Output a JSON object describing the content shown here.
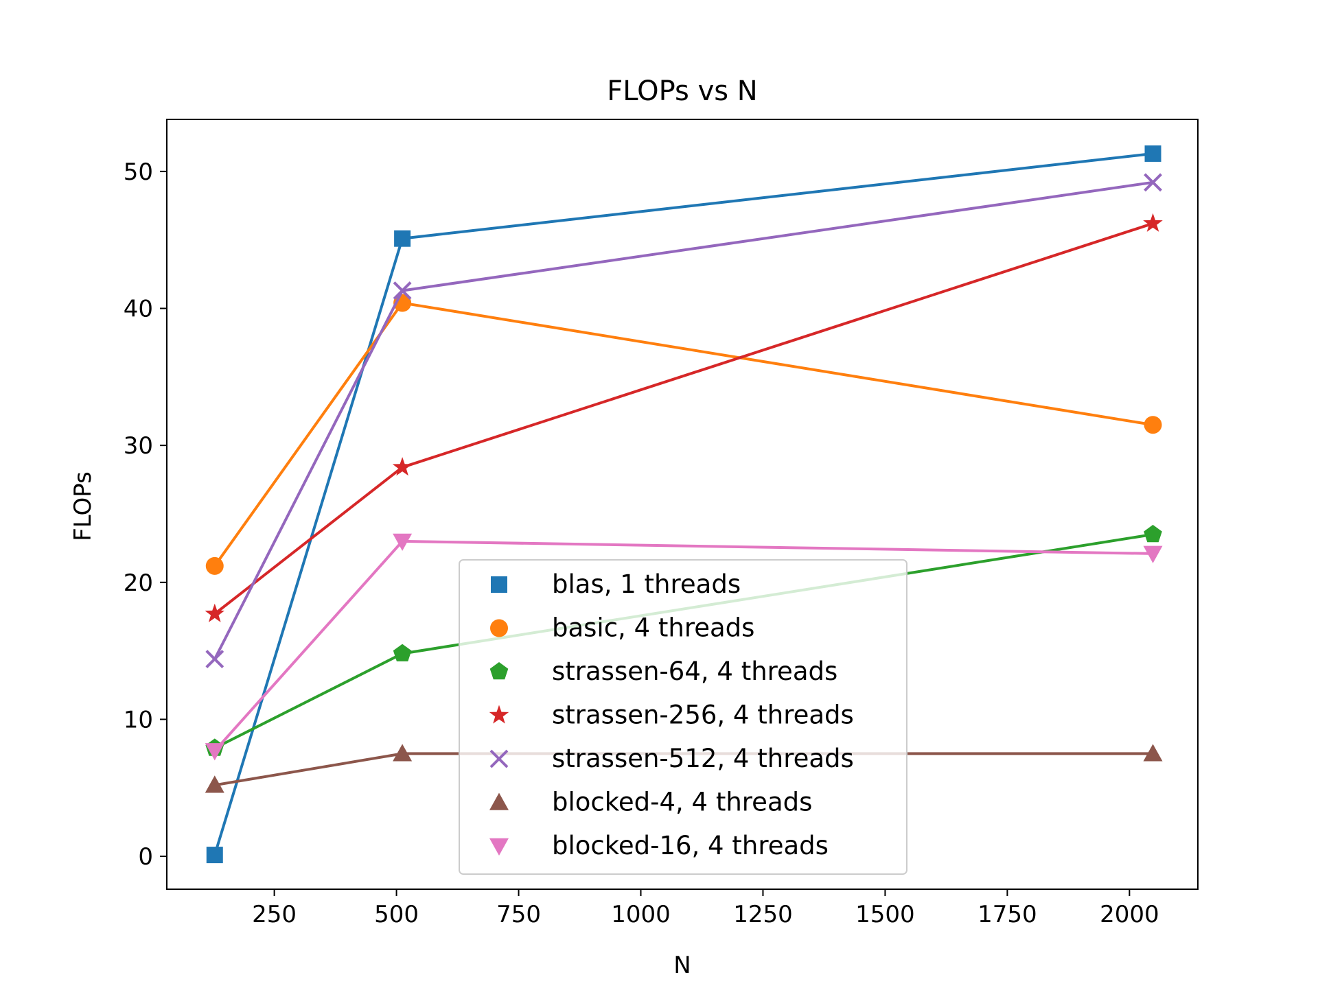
{
  "chart_data": {
    "type": "line",
    "title": "FLOPs vs N",
    "xlabel": "N",
    "ylabel": "FLOPs",
    "xlim": [
      30,
      2140
    ],
    "ylim": [
      -2.4,
      53.8
    ],
    "xticks": [
      250,
      500,
      750,
      1000,
      1250,
      1500,
      1750,
      2000
    ],
    "yticks": [
      0,
      10,
      20,
      30,
      40,
      50
    ],
    "grid": false,
    "legend_position": "lower center",
    "x": [
      128,
      512,
      2048
    ],
    "series": [
      {
        "name": "blas, 1 threads",
        "color": "#1f77b4",
        "marker": "square",
        "values": [
          0.1,
          45.1,
          51.3
        ]
      },
      {
        "name": "basic, 4 threads",
        "color": "#ff7f0e",
        "marker": "circle",
        "values": [
          21.2,
          40.4,
          31.5
        ]
      },
      {
        "name": "strassen-64, 4 threads",
        "color": "#2ca02c",
        "marker": "pentagon",
        "values": [
          7.9,
          14.8,
          23.5
        ]
      },
      {
        "name": "strassen-256, 4 threads",
        "color": "#d62728",
        "marker": "star",
        "values": [
          17.7,
          28.4,
          46.2
        ]
      },
      {
        "name": "strassen-512, 4 threads",
        "color": "#9467bd",
        "marker": "x",
        "values": [
          14.4,
          41.3,
          49.2
        ]
      },
      {
        "name": "blocked-4, 4 threads",
        "color": "#8c564b",
        "marker": "triangle-up",
        "values": [
          5.2,
          7.5,
          7.5
        ]
      },
      {
        "name": "blocked-16, 4 threads",
        "color": "#e377c2",
        "marker": "triangle-down",
        "values": [
          7.7,
          23.0,
          22.1
        ]
      }
    ]
  }
}
